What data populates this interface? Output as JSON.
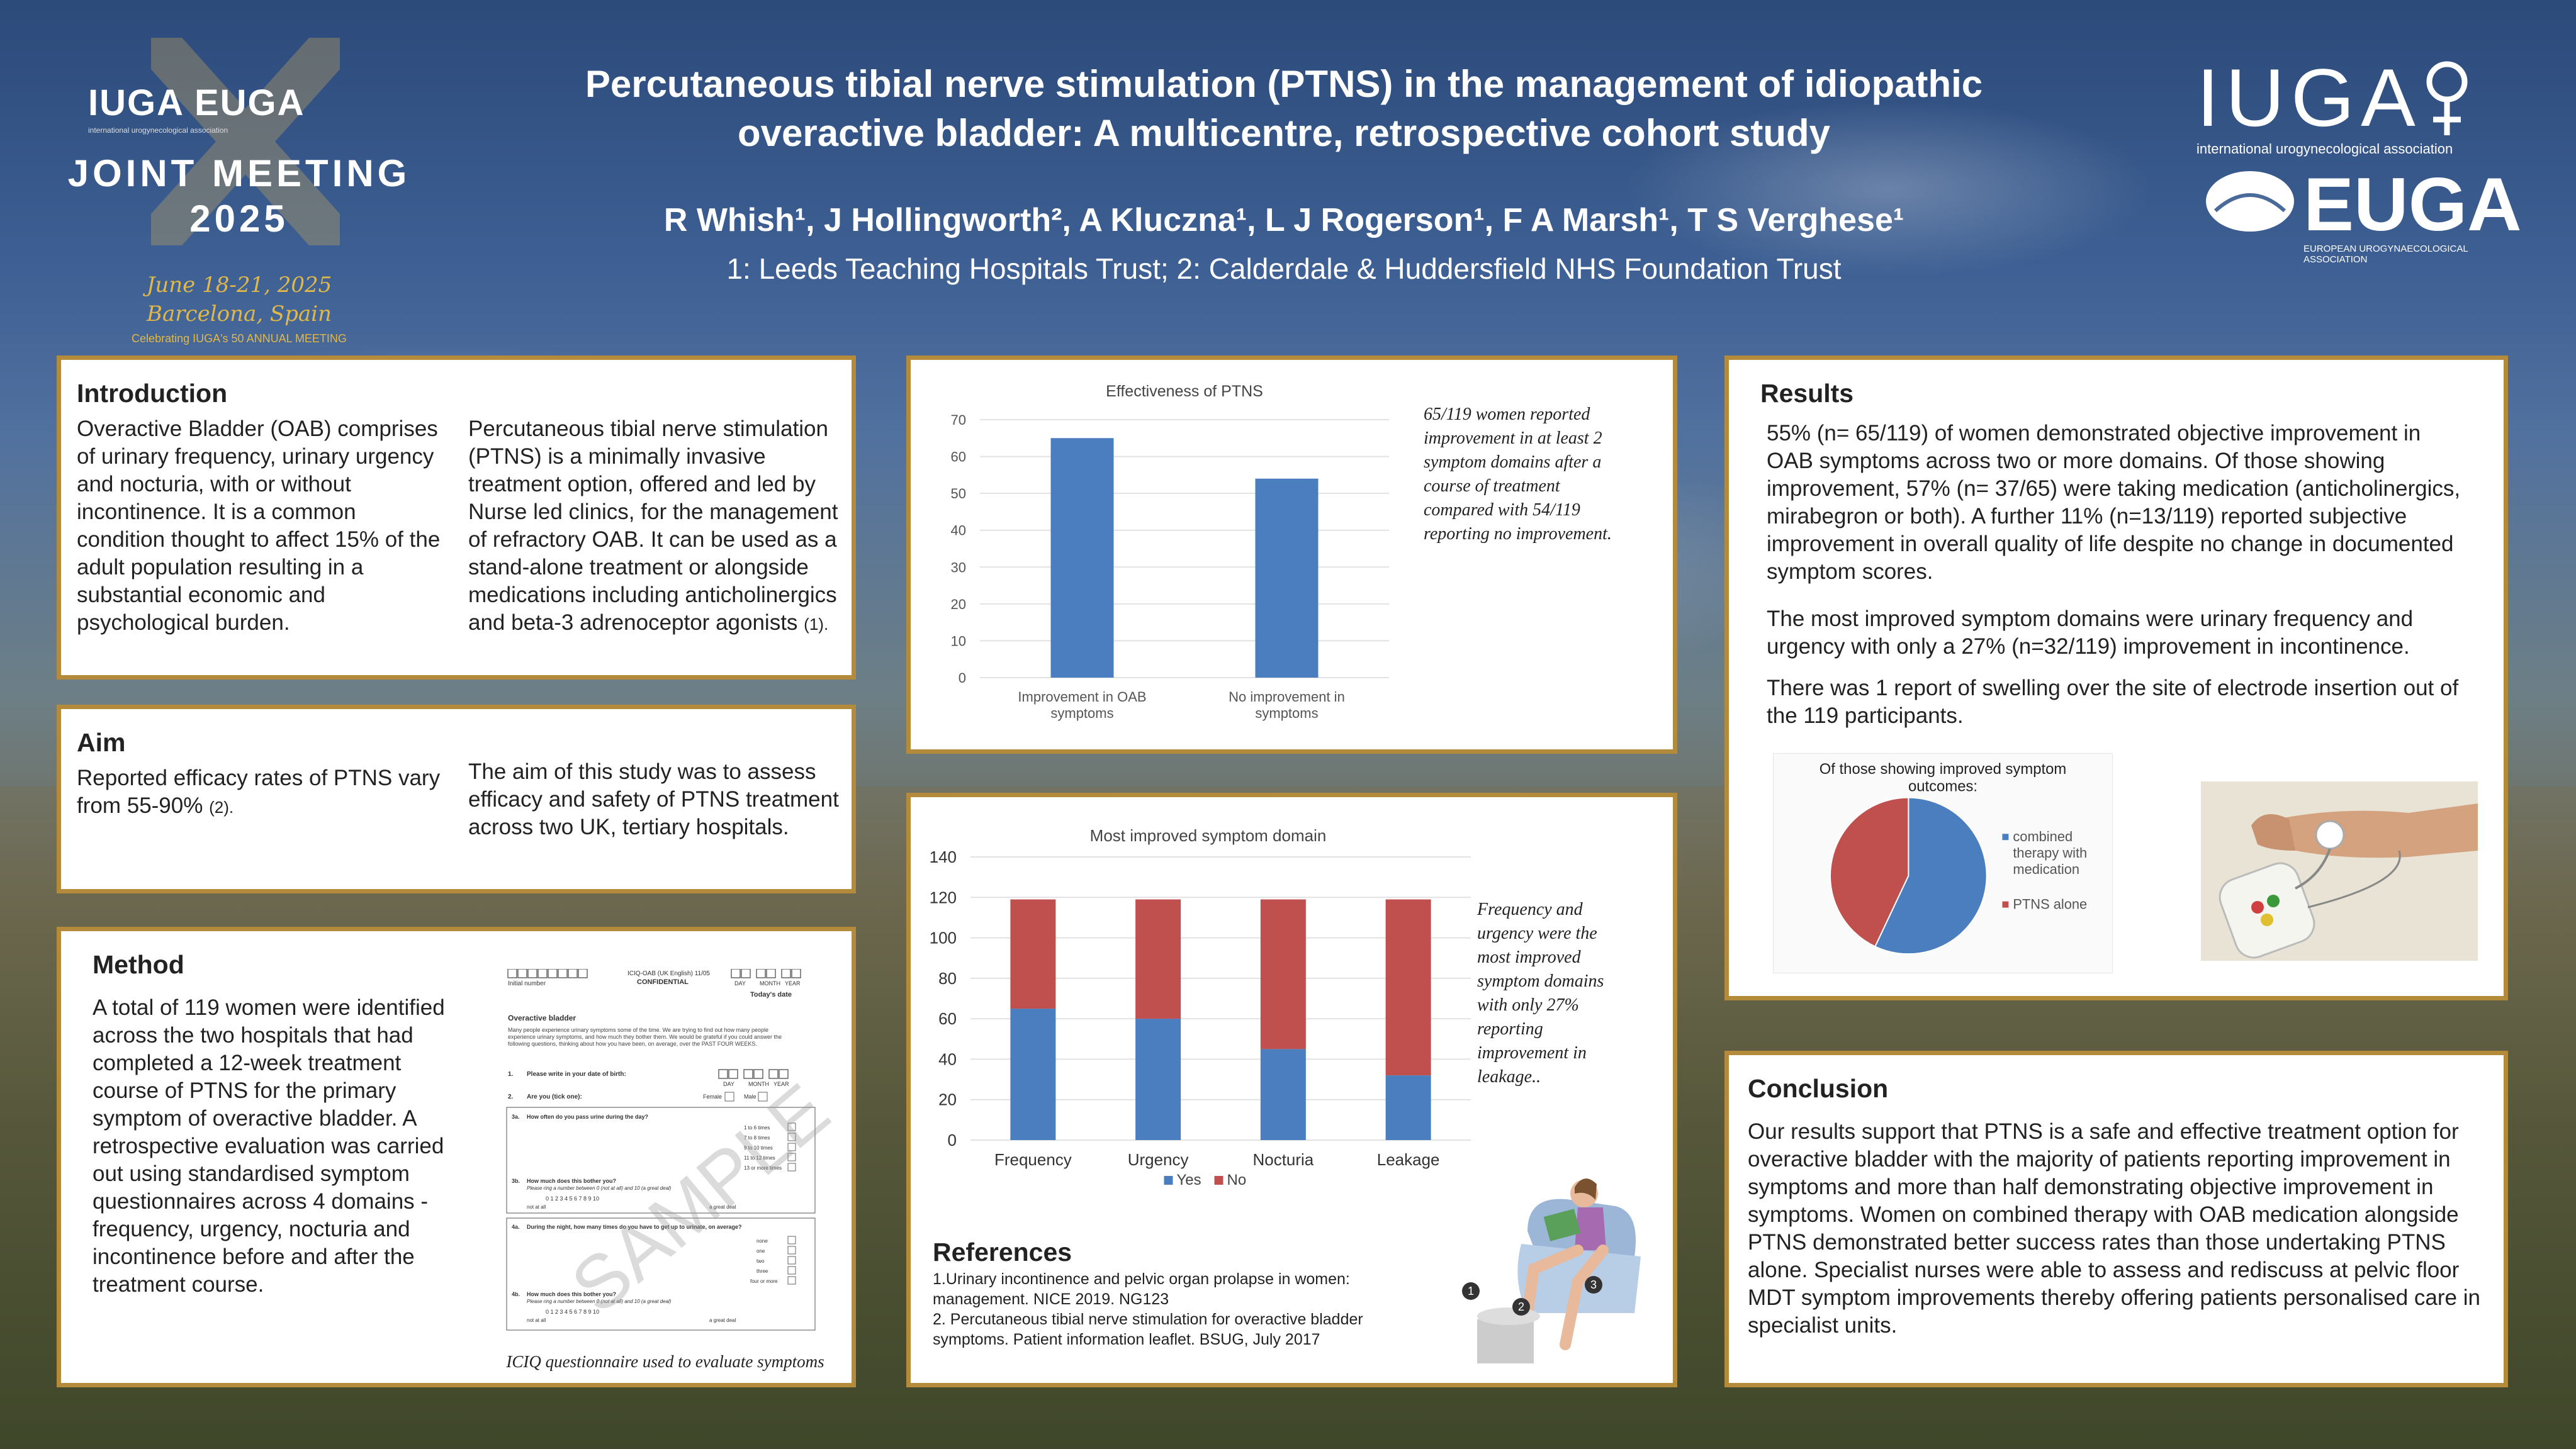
{
  "conference": {
    "logo_line": "IUGA EUGA",
    "logo_tagline": "international urogynecological association",
    "name_line1": "JOINT MEETING",
    "name_line2": "2025",
    "date": "June 18-21, 2025",
    "location": "Barcelona, Spain",
    "anniversary": "Celebrating IUGA's 50 ANNUAL MEETING"
  },
  "header": {
    "title_line1": "Percutaneous tibial nerve stimulation (PTNS) in the management of idiopathic",
    "title_line2": "overactive bladder: A multicentre, retrospective cohort study",
    "authors": "R Whish¹, J Hollingworth², A Kluczna¹, L J Rogerson¹, F A Marsh¹, T S Verghese¹",
    "affiliations": "1: Leeds Teaching Hospitals Trust; 2: Calderdale & Huddersfield NHS Foundation Trust"
  },
  "right_logos": {
    "iuga": "IUGA",
    "iuga_sub": "international urogynecological association",
    "euga": "EUGA",
    "euga_sub": "EUROPEAN UROGYNAECOLOGICAL ASSOCIATION"
  },
  "introduction": {
    "title": "Introduction",
    "col1": "Overactive Bladder (OAB) comprises of urinary frequency, urinary urgency and nocturia, with or without incontinence. It is a common condition thought to affect 15% of the adult population resulting in a substantial economic and psychological burden.",
    "col2": "Percutaneous tibial nerve stimulation (PTNS) is a minimally invasive treatment option, offered and led by Nurse led clinics, for the management of refractory OAB. It can be used as a stand-alone treatment or alongside medications including anticholinergics and beta-3 adrenoceptor agonists",
    "col2_cite": "(1)."
  },
  "aim": {
    "title": "Aim",
    "col1": "Reported efficacy rates of PTNS vary from 55-90%",
    "col1_cite": "(2).",
    "col2": "The aim of this study was to assess efficacy and safety of PTNS treatment across two UK, tertiary hospitals."
  },
  "method": {
    "title": "Method",
    "text": "A total of 119 women were identified across the two hospitals that had completed a 12-week treatment course of PTNS for the primary symptom of overactive bladder. A retrospective evaluation was carried out using standardised symptom questionnaires across 4 domains - frequency, urgency, nocturia and incontinence before and after the treatment course.",
    "caption": "ICIQ questionnaire used to evaluate symptoms",
    "form": {
      "header_left": "Initial number",
      "header_mid": "ICIQ-OAB (UK English) 11/05",
      "confidential": "CONFIDENTIAL",
      "day": "DAY",
      "month": "MONTH",
      "year": "YEAR",
      "todays_date": "Today's date",
      "section": "Overactive bladder",
      "intro": "Many people experience urinary symptoms some of the time. We are trying to find out how many people experience urinary symptoms, and how much they bother them. We would be grateful if you could answer the following questions, thinking about how you have been, on average, over the PAST FOUR WEEKS.",
      "q1": "Please write in your date of birth:",
      "q2": "Are you (tick one):",
      "female": "Female",
      "male": "Male",
      "q3a": "How often do you pass urine during the day?",
      "q3a_opts": [
        "1 to 6 times",
        "7 to 8 times",
        "9 to 10 times",
        "11 to 12 times",
        "13 or more times"
      ],
      "q3b": "How much does this bother you?",
      "q3b_hint": "Please ring a number between 0 (not at all) and 10 (a great deal)",
      "scale": "0  1  2  3  4  5  6  7  8  9  10",
      "not_at_all": "not at all",
      "great_deal": "a great deal",
      "q4a": "During the night, how many times do you have to get up to urinate, on average?",
      "q4a_opts": [
        "none",
        "one",
        "two",
        "three",
        "four or more"
      ],
      "q4b": "How much does this bother you?",
      "watermark": "SAMPLE"
    }
  },
  "chart1_note": "65/119 women reported improvement in at least 2 symptom domains after a course of treatment compared with 54/119 reporting no improvement.",
  "chart2_note": "Frequency and urgency were the most improved symptom domains with only 27% reporting improvement in leakage..",
  "references": {
    "title": "References",
    "items": [
      "1.Urinary incontinence and pelvic organ prolapse in women: management. NICE 2019. NG123",
      "2. Percutaneous tibial nerve stimulation for overactive bladder symptoms. Patient information leaflet. BSUG, July 2017"
    ]
  },
  "results": {
    "title": "Results",
    "p1": "55% (n= 65/119) of women demonstrated objective improvement in OAB symptoms across two or more domains. Of those showing improvement, 57% (n= 37/65) were taking medication (anticholinergics, mirabegron or both). A further 11% (n=13/119) reported subjective improvement in overall quality of life despite no change in documented symptom scores.",
    "p2": "The most improved symptom domains were urinary frequency and urgency with only a 27% (n=32/119) improvement in incontinence.",
    "p3": "There was 1 report of swelling over the site of electrode insertion out of the 119 participants."
  },
  "conclusion": {
    "title": "Conclusion",
    "text": "Our results support that PTNS is a safe and effective treatment option for overactive bladder with the majority of patients reporting improvement in symptoms and more than half demonstrating objective improvement in symptoms. Women on combined therapy with OAB medication alongside PTNS demonstrated better success rates than those undertaking PTNS alone. Specialist nurses were able to assess and rediscuss at pelvic floor MDT symptom improvements thereby offering patients personalised care in specialist units."
  },
  "illustration_labels": [
    "1",
    "2",
    "3"
  ],
  "colors": {
    "panel_border": "#b38b3a",
    "blue": "#4a7ebf",
    "red": "#c0504d"
  },
  "chart_data": [
    {
      "type": "bar",
      "title": "Effectiveness of PTNS",
      "categories": [
        "Improvement in OAB symptoms",
        "No improvement in symptoms"
      ],
      "category_lines": [
        [
          "Improvement in OAB",
          "symptoms"
        ],
        [
          "No improvement in",
          "symptoms"
        ]
      ],
      "values": [
        65,
        54
      ],
      "ylim": [
        0,
        70
      ],
      "yticks": [
        0,
        10,
        20,
        30,
        40,
        50,
        60,
        70
      ],
      "grid": true
    },
    {
      "type": "bar",
      "stacked": true,
      "title": "Most improved symptom domain",
      "categories": [
        "Frequency",
        "Urgency",
        "Nocturia",
        "Leakage"
      ],
      "series": [
        {
          "name": "Yes",
          "values": [
            65,
            60,
            45,
            32
          ]
        },
        {
          "name": "No",
          "values": [
            54,
            59,
            74,
            87
          ]
        }
      ],
      "ylim": [
        0,
        140
      ],
      "yticks": [
        0,
        20,
        40,
        60,
        80,
        100,
        120,
        140
      ],
      "legend": "bottom",
      "grid": true
    },
    {
      "type": "pie",
      "title": "Of those showing improved symptom outcomes:",
      "title_lines": [
        "Of those showing improved symptom",
        "outcomes:"
      ],
      "slices": [
        {
          "label": "combined therapy with medication",
          "label_lines": [
            "combined",
            "therapy with",
            "medication"
          ],
          "value": 57
        },
        {
          "label": "PTNS alone",
          "label_lines": [
            "PTNS alone"
          ],
          "value": 43
        }
      ],
      "legend": "right"
    }
  ]
}
